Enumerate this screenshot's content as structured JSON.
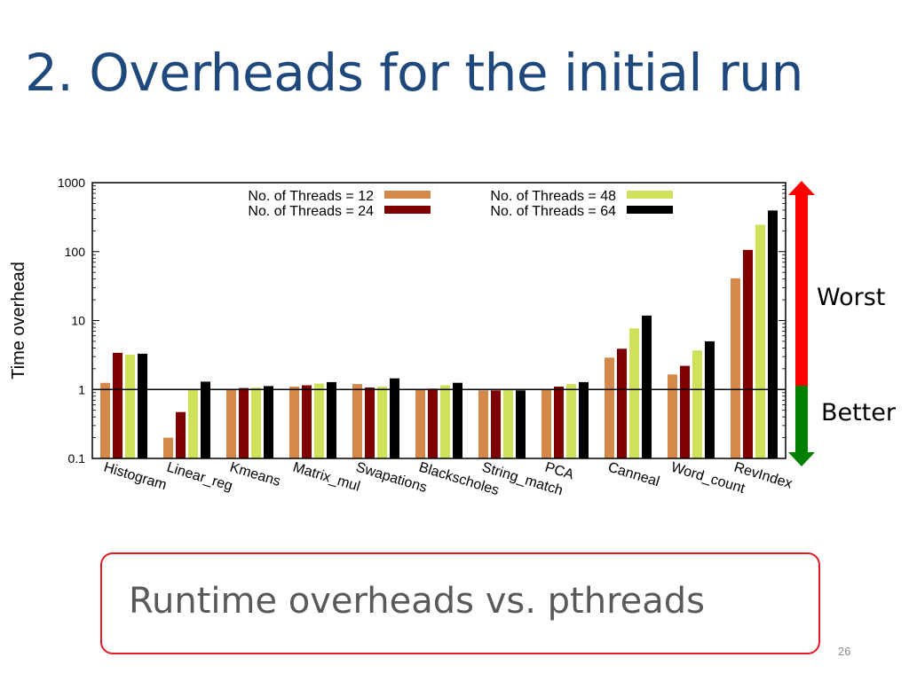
{
  "slide": {
    "title": "2. Overheads for the initial run",
    "callout_text": "Runtime overheads vs. pthreads",
    "slide_number": "26"
  },
  "scale_arrow": {
    "top_label": "Worst",
    "bottom_label": "Better",
    "colors": {
      "worst": "#ff0000",
      "better": "#008000"
    }
  },
  "chart_data": {
    "type": "bar",
    "ylabel": "Time overhead",
    "xlabel": "",
    "yscale": "log",
    "ylim": [
      0.1,
      1000
    ],
    "yticks": [
      "0.1",
      "1",
      "10",
      "100",
      "1000"
    ],
    "yticks_values": [
      0.1,
      1,
      10,
      100,
      1000
    ],
    "reference_line": 1,
    "legend_position": "top-center",
    "categories": [
      "Histogram",
      "Linear_reg",
      "Kmeans",
      "Matrix_mul",
      "Swapations",
      "Blackscholes",
      "String_match",
      "PCA",
      "Canneal",
      "Word_count",
      "RevIndex"
    ],
    "series": [
      {
        "name": "No. of Threads = 12",
        "color": "#d4884a",
        "values": [
          1.25,
          0.2,
          1.0,
          1.1,
          1.2,
          1.0,
          0.97,
          1.0,
          2.9,
          1.65,
          41
        ]
      },
      {
        "name": "No. of Threads = 24",
        "color": "#7f0000",
        "values": [
          3.4,
          0.47,
          1.05,
          1.15,
          1.07,
          1.03,
          0.97,
          1.1,
          3.9,
          2.2,
          106
        ]
      },
      {
        "name": "No. of Threads = 48",
        "color": "#cfe05a",
        "values": [
          3.2,
          1.0,
          1.07,
          1.22,
          1.1,
          1.15,
          1.0,
          1.2,
          7.7,
          3.7,
          245
        ]
      },
      {
        "name": "No. of Threads = 64",
        "color": "#000000",
        "values": [
          3.3,
          1.3,
          1.12,
          1.28,
          1.45,
          1.25,
          0.97,
          1.28,
          11.8,
          5.0,
          395
        ]
      }
    ]
  }
}
